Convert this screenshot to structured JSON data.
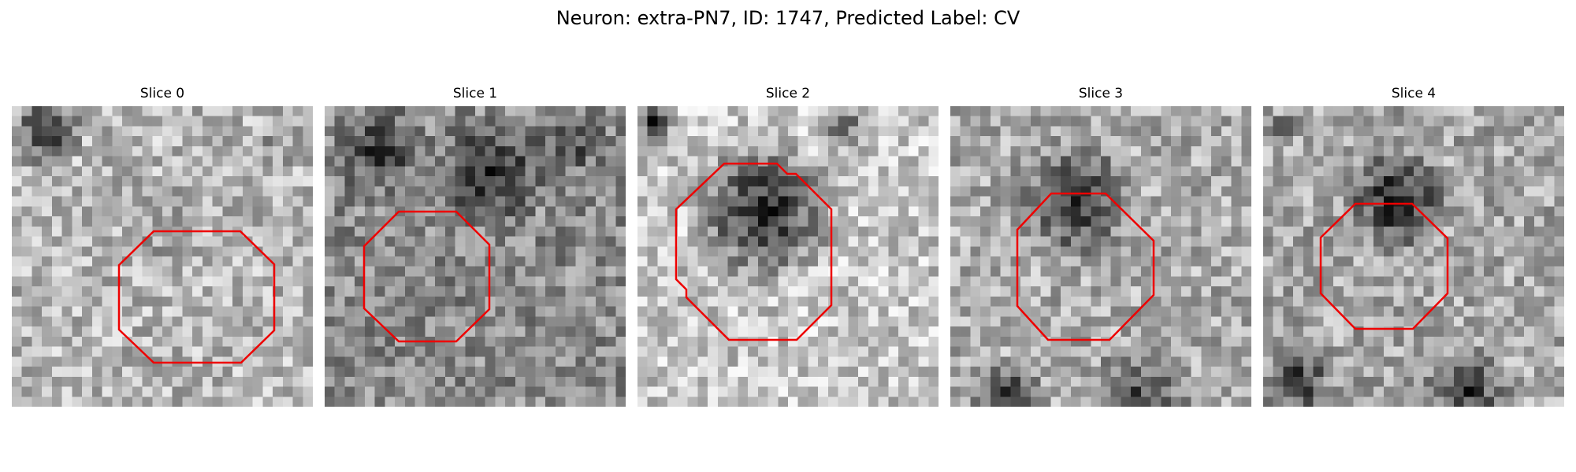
{
  "figure": {
    "title": "Neuron: extra-PN7, ID: 1747, Predicted Label: CV"
  },
  "panels": [
    {
      "title": "Slice 0",
      "colormap": "grayscale",
      "outline_color": "#ee0000"
    },
    {
      "title": "Slice 1",
      "colormap": "grayscale",
      "outline_color": "#ee0000"
    },
    {
      "title": "Slice 2",
      "colormap": "grayscale",
      "outline_color": "#ee0000"
    },
    {
      "title": "Slice 3",
      "colormap": "grayscale",
      "outline_color": "#ee0000"
    },
    {
      "title": "Slice 4",
      "colormap": "grayscale",
      "outline_color": "#ee0000"
    }
  ]
}
